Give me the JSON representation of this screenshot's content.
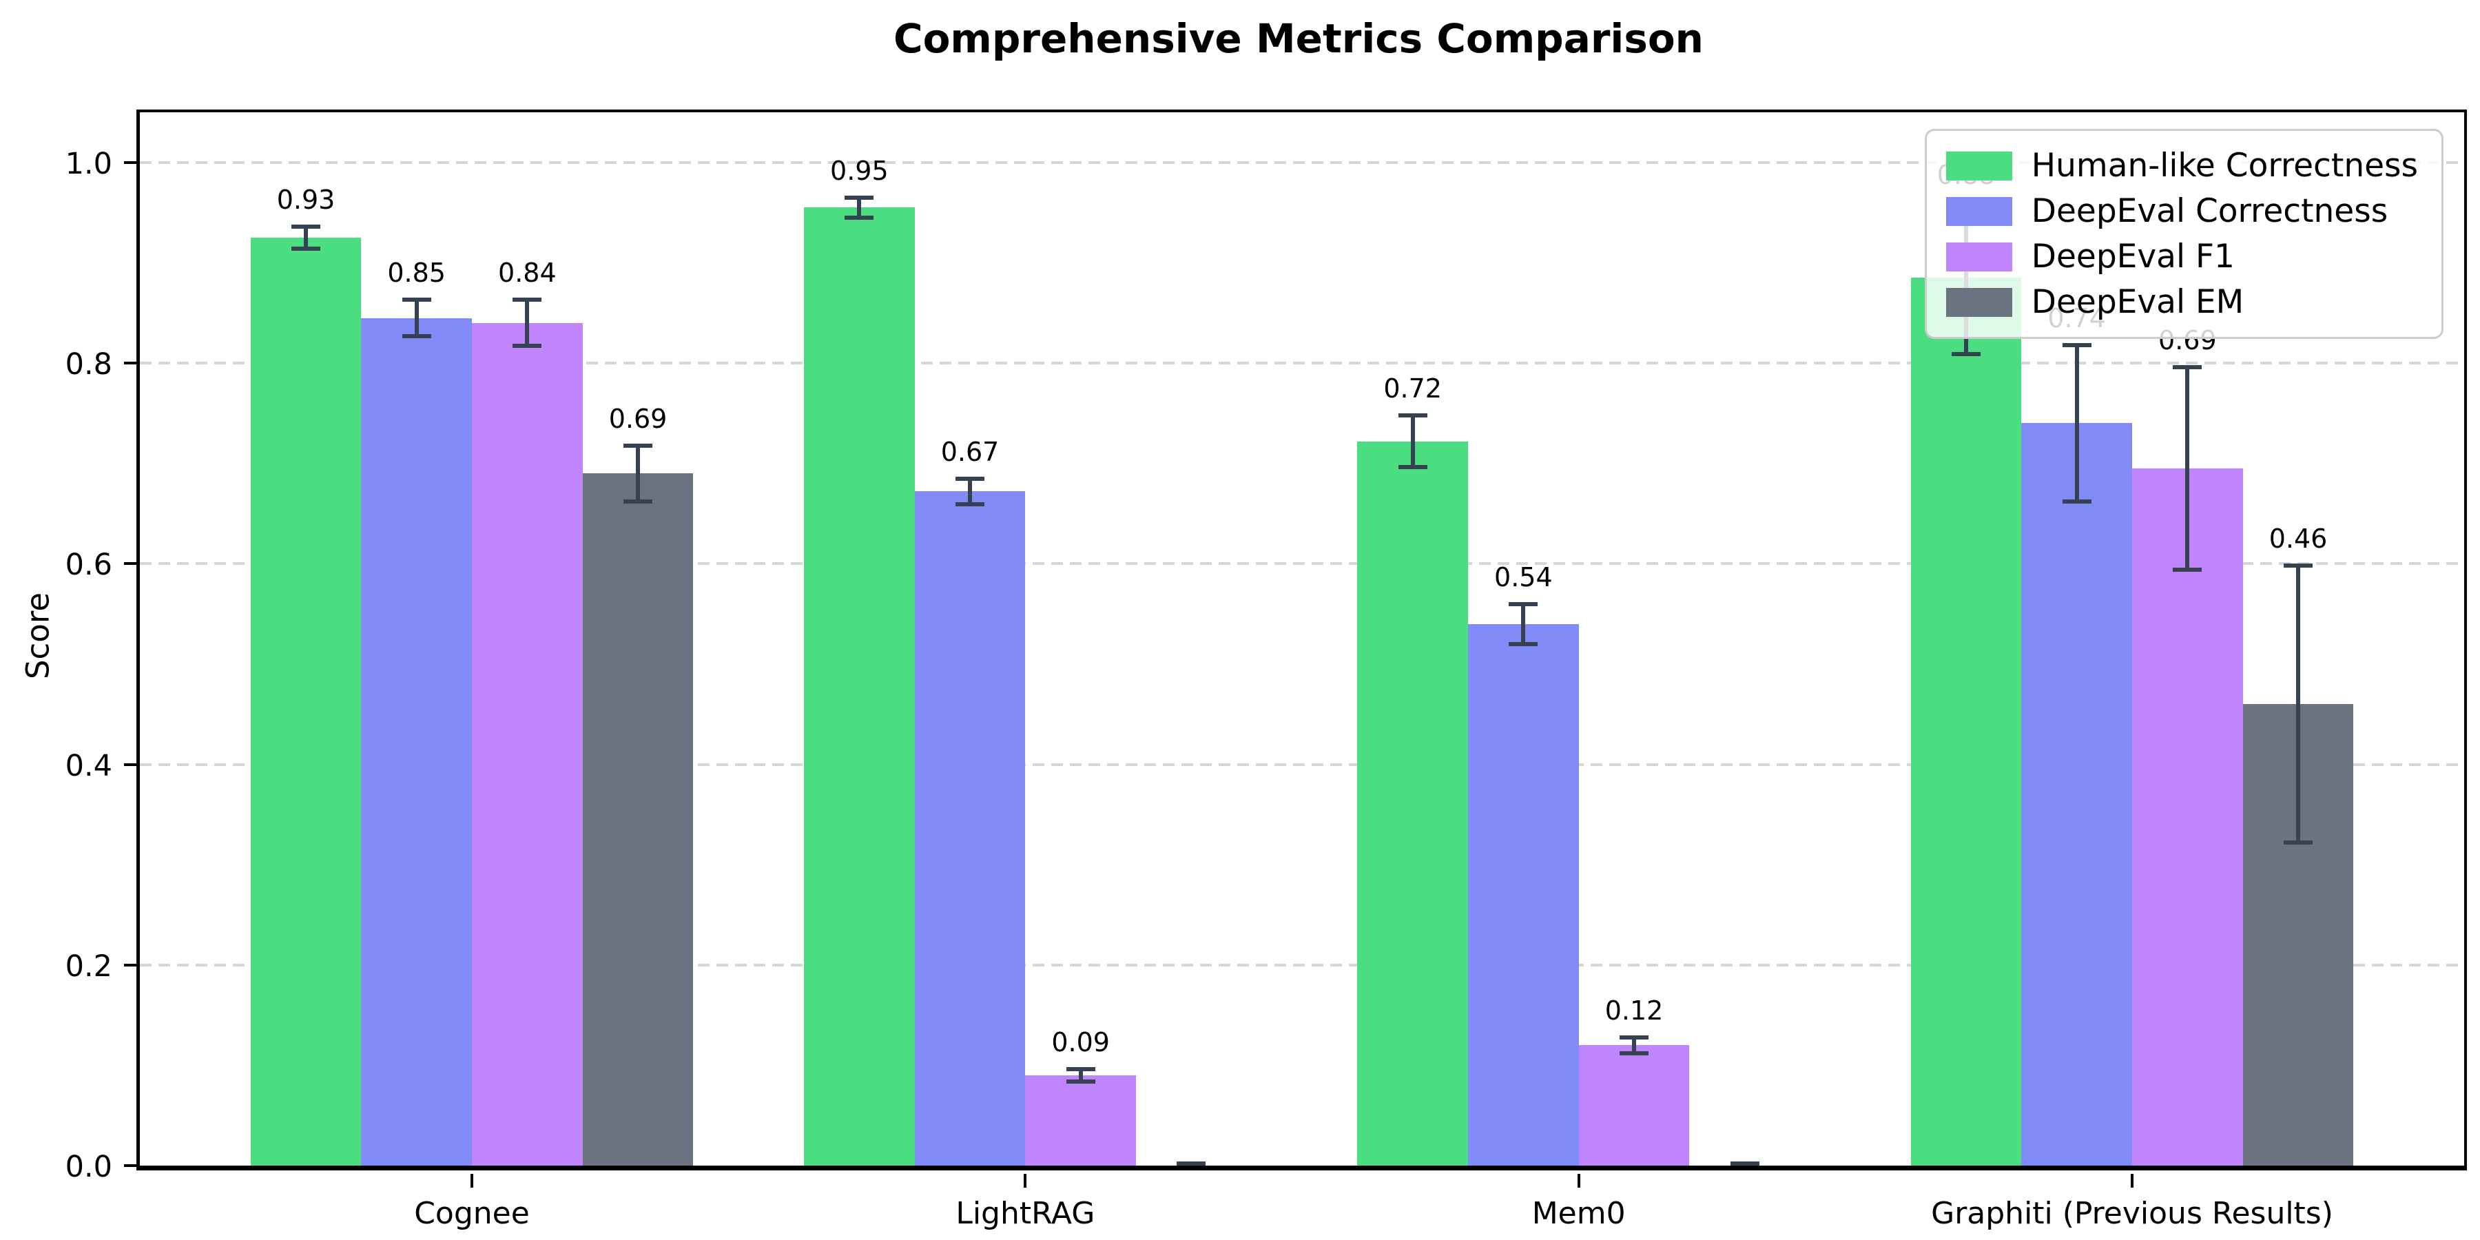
{
  "chart_data": {
    "type": "bar",
    "title": "Comprehensive Metrics Comparison",
    "xlabel": "",
    "ylabel": "Score",
    "categories": [
      "Cognee",
      "LightRAG",
      "Mem0",
      "Graphiti (Previous Results)"
    ],
    "series": [
      {
        "name": "Human-like Correctness",
        "color": "#4ade80",
        "values": [
          0.925,
          0.955,
          0.722,
          0.885
        ],
        "labels": [
          "0.93",
          "0.95",
          "0.72",
          "0.88"
        ],
        "errors": [
          0.013,
          0.012,
          0.028,
          0.078
        ]
      },
      {
        "name": "DeepEval Correctness",
        "color": "#818cf8",
        "values": [
          0.845,
          0.672,
          0.54,
          0.74
        ],
        "labels": [
          "0.85",
          "0.67",
          "0.54",
          "0.74"
        ],
        "errors": [
          0.02,
          0.015,
          0.022,
          0.08
        ]
      },
      {
        "name": "DeepEval F1",
        "color": "#c084fc",
        "values": [
          0.84,
          0.09,
          0.12,
          0.695
        ],
        "labels": [
          "0.84",
          "0.09",
          "0.12",
          "0.69"
        ],
        "errors": [
          0.025,
          0.008,
          0.01,
          0.103
        ]
      },
      {
        "name": "DeepEval EM",
        "color": "#6b7280",
        "values": [
          0.69,
          0.0,
          0.0,
          0.46
        ],
        "labels": [
          "0.69",
          "",
          "",
          "0.46"
        ],
        "errors": [
          0.03,
          0.004,
          0.004,
          0.14
        ]
      }
    ],
    "yticks": [
      "0.0",
      "0.2",
      "0.4",
      "0.6",
      "0.8",
      "1.0"
    ],
    "ytick_values": [
      0.0,
      0.2,
      0.4,
      0.6,
      0.8,
      1.0
    ],
    "ylim": [
      0,
      1.05
    ],
    "bar_width_data_units": 0.2,
    "x_span_data_units": 4.2,
    "group_center_offset": 0.6,
    "grid": "horizontal-dashed",
    "legend_position": "upper right",
    "error_bar_color": "#364152",
    "grid_color": "#d6d6d6"
  }
}
